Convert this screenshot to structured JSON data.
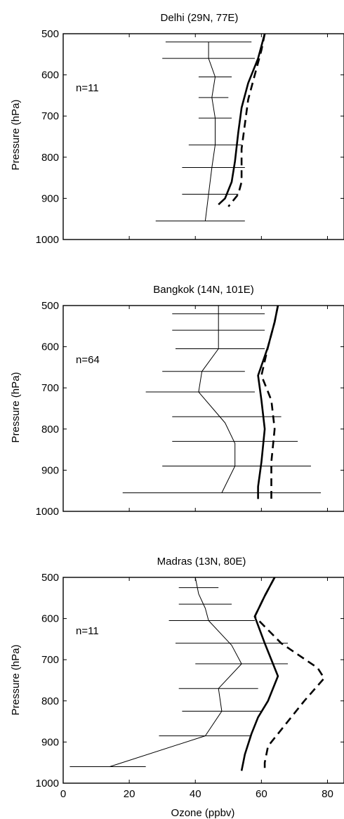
{
  "chart_data": [
    {
      "type": "line",
      "title": "Delhi (29N, 77E)",
      "ylabel": "Pressure (hPa)",
      "xlabel": "",
      "annotation": "n=11",
      "xlim": [
        0,
        85
      ],
      "ylim": [
        1000,
        500
      ],
      "yticks": [
        "500",
        "600",
        "700",
        "800",
        "900",
        "1000"
      ],
      "xticks": [],
      "series": [
        {
          "style": "thin-observed",
          "points": [
            [
              44,
              520
            ],
            [
              44,
              560
            ],
            [
              46,
              605
            ],
            [
              45,
              655
            ],
            [
              46,
              705
            ],
            [
              46,
              770
            ],
            [
              45,
              825
            ],
            [
              44,
              890
            ],
            [
              43,
              955
            ]
          ]
        },
        {
          "style": "thick-solid",
          "points": [
            [
              61,
              500
            ],
            [
              59,
              560
            ],
            [
              56,
              620
            ],
            [
              54,
              680
            ],
            [
              53,
              740
            ],
            [
              52,
              810
            ],
            [
              51,
              860
            ],
            [
              49,
              900
            ],
            [
              47,
              915
            ]
          ]
        },
        {
          "style": "thick-dashed",
          "points": [
            [
              61,
              500
            ],
            [
              60,
              540
            ],
            [
              58,
              600
            ],
            [
              56,
              660
            ],
            [
              55,
              720
            ],
            [
              54,
              780
            ],
            [
              54,
              860
            ],
            [
              53,
              890
            ],
            [
              51,
              910
            ],
            [
              50,
              920
            ]
          ]
        }
      ],
      "errorbars": [
        {
          "p": 520,
          "lo": 31,
          "hi": 57
        },
        {
          "p": 560,
          "lo": 30,
          "hi": 58
        },
        {
          "p": 605,
          "lo": 41,
          "hi": 51
        },
        {
          "p": 655,
          "lo": 41,
          "hi": 50
        },
        {
          "p": 705,
          "lo": 41,
          "hi": 51
        },
        {
          "p": 770,
          "lo": 38,
          "hi": 54
        },
        {
          "p": 825,
          "lo": 36,
          "hi": 55
        },
        {
          "p": 890,
          "lo": 36,
          "hi": 53
        },
        {
          "p": 955,
          "lo": 28,
          "hi": 55
        }
      ]
    },
    {
      "type": "line",
      "title": "Bangkok (14N, 101E)",
      "ylabel": "Pressure (hPa)",
      "xlabel": "",
      "annotation": "n=64",
      "xlim": [
        0,
        85
      ],
      "ylim": [
        1000,
        500
      ],
      "yticks": [
        "500",
        "600",
        "700",
        "800",
        "900",
        "1000"
      ],
      "xticks": [],
      "series": [
        {
          "style": "thin-observed",
          "points": [
            [
              47,
              500
            ],
            [
              47,
              520
            ],
            [
              47,
              560
            ],
            [
              47,
              605
            ],
            [
              42,
              660
            ],
            [
              41,
              710
            ],
            [
              49,
              785
            ],
            [
              52,
              835
            ],
            [
              52,
              890
            ],
            [
              48,
              955
            ]
          ]
        },
        {
          "style": "thick-solid",
          "points": [
            [
              65,
              500
            ],
            [
              64,
              540
            ],
            [
              62,
              600
            ],
            [
              59,
              670
            ],
            [
              60,
              730
            ],
            [
              61,
              800
            ],
            [
              60,
              880
            ],
            [
              59,
              940
            ],
            [
              59,
              970
            ]
          ]
        },
        {
          "style": "thick-dashed",
          "points": [
            [
              65,
              500
            ],
            [
              64,
              540
            ],
            [
              62,
              600
            ],
            [
              60,
              670
            ],
            [
              63,
              730
            ],
            [
              64,
              800
            ],
            [
              63,
              880
            ],
            [
              63,
              940
            ],
            [
              63,
              970
            ]
          ]
        }
      ],
      "errorbars": [
        {
          "p": 520,
          "lo": 33,
          "hi": 61
        },
        {
          "p": 560,
          "lo": 33,
          "hi": 61
        },
        {
          "p": 605,
          "lo": 34,
          "hi": 61
        },
        {
          "p": 660,
          "lo": 30,
          "hi": 55
        },
        {
          "p": 710,
          "lo": 25,
          "hi": 58
        },
        {
          "p": 770,
          "lo": 33,
          "hi": 66
        },
        {
          "p": 830,
          "lo": 33,
          "hi": 71
        },
        {
          "p": 890,
          "lo": 30,
          "hi": 75
        },
        {
          "p": 955,
          "lo": 18,
          "hi": 78
        }
      ]
    },
    {
      "type": "line",
      "title": "Madras (13N, 80E)",
      "ylabel": "Pressure (hPa)",
      "xlabel": "Ozone (ppbv)",
      "annotation": "n=11",
      "xlim": [
        0,
        85
      ],
      "ylim": [
        1000,
        500
      ],
      "yticks": [
        "500",
        "600",
        "700",
        "800",
        "900",
        "1000"
      ],
      "xticks": [
        "0",
        "20",
        "40",
        "60",
        "80"
      ],
      "series": [
        {
          "style": "thin-observed",
          "points": [
            [
              40,
              500
            ],
            [
              41,
              540
            ],
            [
              43,
              575
            ],
            [
              44,
              605
            ],
            [
              51,
              665
            ],
            [
              54,
              710
            ],
            [
              47,
              770
            ],
            [
              48,
              825
            ],
            [
              43,
              885
            ],
            [
              14,
              960
            ]
          ]
        },
        {
          "style": "thick-solid",
          "points": [
            [
              64,
              500
            ],
            [
              61,
              545
            ],
            [
              58,
              595
            ],
            [
              61,
              660
            ],
            [
              65,
              740
            ],
            [
              62,
              800
            ],
            [
              59,
              840
            ],
            [
              57,
              880
            ],
            [
              55,
              930
            ],
            [
              54,
              970
            ]
          ]
        },
        {
          "style": "thick-dashed",
          "points": [
            [
              64,
              500
            ],
            [
              61,
              545
            ],
            [
              58,
              595
            ],
            [
              66,
              660
            ],
            [
              77,
              720
            ],
            [
              79,
              745
            ],
            [
              73,
              800
            ],
            [
              67,
              860
            ],
            [
              62,
              910
            ],
            [
              61,
              950
            ],
            [
              61,
              970
            ]
          ]
        }
      ],
      "errorbars": [
        {
          "p": 525,
          "lo": 35,
          "hi": 47
        },
        {
          "p": 565,
          "lo": 35,
          "hi": 51
        },
        {
          "p": 605,
          "lo": 32,
          "hi": 58
        },
        {
          "p": 660,
          "lo": 34,
          "hi": 68
        },
        {
          "p": 710,
          "lo": 40,
          "hi": 68
        },
        {
          "p": 770,
          "lo": 35,
          "hi": 59
        },
        {
          "p": 825,
          "lo": 36,
          "hi": 60
        },
        {
          "p": 885,
          "lo": 29,
          "hi": 57
        },
        {
          "p": 960,
          "lo": 2,
          "hi": 25
        }
      ]
    }
  ]
}
